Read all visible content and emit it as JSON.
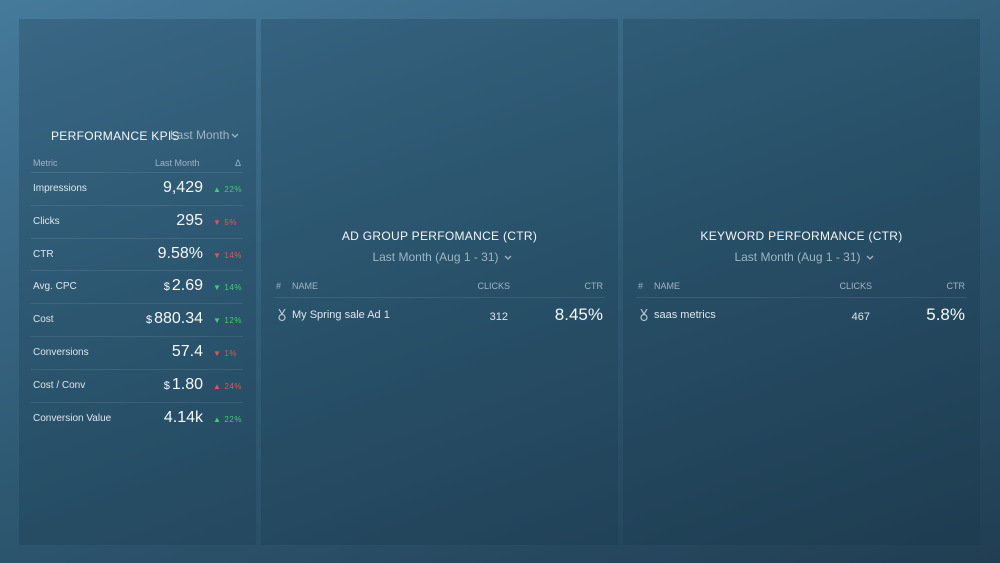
{
  "panels": [
    {
      "title": "PERFORMANCE KPIS",
      "period": "Last Month",
      "columns": [
        "Metric",
        "Last Month",
        "Δ"
      ],
      "rows": [
        {
          "metric": "Impressions",
          "currency": null,
          "value": "9,429",
          "arrow": "▲",
          "delta": "22%",
          "color": "#3ecf6e"
        },
        {
          "metric": "Clicks",
          "currency": null,
          "value": "295",
          "arrow": "▼",
          "delta": "5%",
          "color": "#e8534f"
        },
        {
          "metric": "CTR",
          "currency": null,
          "value": "9.58%",
          "arrow": "▼",
          "delta": "14%",
          "color": "#e8534f"
        },
        {
          "metric": "Avg. CPC",
          "currency": "$",
          "value": "2.69",
          "arrow": "▼",
          "delta": "14%",
          "color": "#3ecf6e"
        },
        {
          "metric": "Cost",
          "currency": "$",
          "value": "880.34",
          "arrow": "▼",
          "delta": "12%",
          "color": "#3ecf6e"
        },
        {
          "metric": "Conversions",
          "currency": null,
          "value": "57.4",
          "arrow": "▼",
          "delta": "1%",
          "color": "#e8534f"
        },
        {
          "metric": "Cost / Conv",
          "currency": "$",
          "value": "1.80",
          "arrow": "▲",
          "delta": "24%",
          "color": "#e8534f"
        },
        {
          "metric": "Conversion Value",
          "currency": null,
          "value": "4.14k",
          "arrow": "▲",
          "delta": "22%",
          "color": "#3ecf6e"
        }
      ]
    },
    {
      "title": "AD GROUP PERFOMANCE (CTR)",
      "period": "Last Month (Aug 1 - 31)",
      "columns": [
        "#",
        "NAME",
        "CLICKS",
        "CTR"
      ],
      "rows": [
        {
          "name": "My Spring sale Ad 1",
          "clicks": "312",
          "ctr": "8.45%"
        }
      ]
    },
    {
      "title": "KEYWORD PERFORMANCE (CTR)",
      "period": "Last Month (Aug 1 - 31)",
      "columns": [
        "#",
        "NAME",
        "CLICKS",
        "CTR"
      ],
      "rows": [
        {
          "name": "saas metrics",
          "clicks": "467",
          "ctr": "5.8%"
        }
      ]
    }
  ]
}
